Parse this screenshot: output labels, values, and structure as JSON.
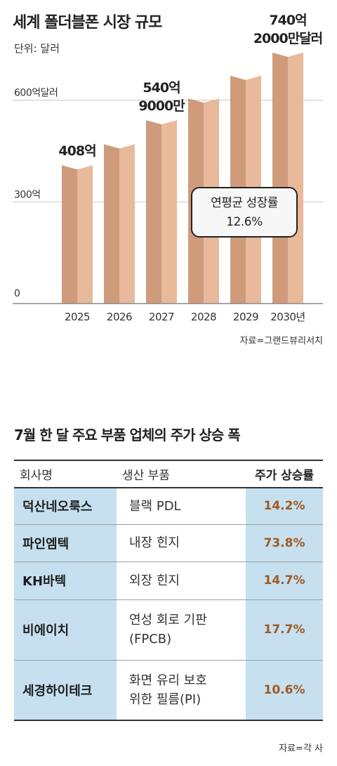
{
  "chart_data": {
    "type": "bar",
    "title": "세계 폴더블폰 시장 규모",
    "unit": "단위: 달러",
    "categories": [
      "2025",
      "2026",
      "2027",
      "2028",
      "2029",
      "2030년"
    ],
    "values": [
      408,
      470,
      540.9,
      605,
      672,
      740.2
    ],
    "ylim": [
      0,
      800
    ],
    "yticks": [
      {
        "value": 0,
        "label": "0"
      },
      {
        "value": 300,
        "label": "300억"
      },
      {
        "value": 600,
        "label": "600억달러"
      }
    ],
    "grid": true,
    "bar_color": "#e8b99a",
    "bar_shade_color": "#cf9b7b",
    "data_labels": [
      {
        "index": 0,
        "lines": [
          "408억"
        ]
      },
      {
        "index": 2,
        "lines": [
          "540억",
          "9000만"
        ]
      },
      {
        "index": 5,
        "lines": [
          "740억",
          "2000만달러"
        ]
      }
    ],
    "annotation": {
      "line1": "연평균 성장률",
      "line2": "12.6%"
    },
    "source": "자료=그랜드뷰리서치"
  },
  "table": {
    "title": "7월 한 달 주요 부품 업체의 주가 상승 폭",
    "headers": [
      "회사명",
      "생산 부품",
      "주가 상승률"
    ],
    "rows": [
      {
        "company": "덕산네오룩스",
        "part": "블랙 PDL",
        "rise": "14.2%"
      },
      {
        "company": "파인엠텍",
        "part": "내장 힌지",
        "rise": "73.8%"
      },
      {
        "company": "KH바텍",
        "part": "외장 힌지",
        "rise": "14.7%"
      },
      {
        "company": "비에이치",
        "part": "연성 회로 기판\n(FPCB)",
        "rise": "17.7%"
      },
      {
        "company": "세경하이테크",
        "part": "화면 유리 보호\n위한 필름(PI)",
        "rise": "10.6%"
      }
    ],
    "source": "자료=각 사",
    "highlight_color": "#c6e0ef",
    "rise_color": "#a05a22"
  }
}
